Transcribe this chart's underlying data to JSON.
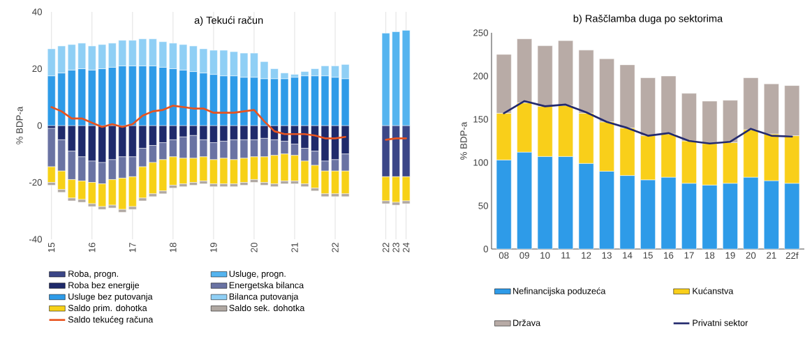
{
  "chart_data": [
    {
      "type": "bar",
      "title": "a) Tekući račun",
      "ylabel": "% BDP-a",
      "stacked": true,
      "grid": "x",
      "legend": "bottom",
      "categories": [
        "15",
        null,
        null,
        null,
        "16",
        null,
        null,
        null,
        "17",
        null,
        null,
        null,
        "18",
        null,
        null,
        null,
        "19",
        null,
        null,
        null,
        "20",
        null,
        null,
        null,
        "21",
        null,
        null,
        null,
        "22",
        null,
        null,
        null,
        null,
        "22",
        "23",
        "24"
      ],
      "ylim": [
        -40,
        40
      ],
      "yticks": [
        -40,
        -20,
        0,
        20,
        40
      ],
      "series": [
        {
          "name": "Roba, progn.",
          "color": "#3b4687",
          "values": [
            null,
            null,
            null,
            null,
            null,
            null,
            null,
            null,
            null,
            null,
            null,
            null,
            null,
            null,
            null,
            null,
            null,
            null,
            null,
            null,
            null,
            null,
            null,
            null,
            null,
            null,
            null,
            null,
            null,
            null,
            null,
            null,
            null,
            -18,
            -18,
            -18
          ]
        },
        {
          "name": "Usluge, progn.",
          "color": "#55b4ef",
          "values": [
            null,
            null,
            null,
            null,
            null,
            null,
            null,
            null,
            null,
            null,
            null,
            null,
            null,
            null,
            null,
            null,
            null,
            null,
            null,
            null,
            null,
            null,
            null,
            null,
            null,
            null,
            null,
            null,
            null,
            null,
            null,
            null,
            null,
            32.5,
            33,
            33.5
          ]
        },
        {
          "name": "Roba bez energije",
          "color": "#1f2a6b",
          "values": [
            -1,
            -5,
            -9,
            -11,
            -12.5,
            -13,
            -12,
            -11,
            -11,
            -8,
            -7,
            -6,
            -5,
            -4,
            -3.5,
            -5,
            -6,
            -5.5,
            -5,
            -5,
            -5,
            -4.5,
            -5,
            -5.5,
            -6.5,
            -8,
            -9,
            -12.5,
            -12,
            -10,
            null,
            null,
            null,
            null,
            null,
            null
          ]
        },
        {
          "name": "Energetska bilanca",
          "color": "#6a73a3",
          "values": [
            -13.5,
            -11,
            -10,
            -8.5,
            -7.5,
            -7.5,
            -7,
            -7.5,
            -7,
            -6.5,
            -6,
            -6,
            -6,
            -7.5,
            -8,
            -6,
            -6,
            -6,
            -7,
            -6.5,
            -6,
            -6.5,
            -5.5,
            -4.5,
            -4,
            -4.5,
            -5,
            -3.5,
            -4,
            -6,
            null,
            null,
            null,
            null,
            null,
            null
          ]
        },
        {
          "name": "Usluge bez putovanja",
          "color": "#2e9be8",
          "values": [
            17.5,
            18.5,
            19.5,
            20,
            19.5,
            20,
            20.5,
            21,
            21,
            21,
            21,
            20.5,
            20,
            19.5,
            19,
            18.5,
            18,
            17.5,
            17.5,
            17,
            17,
            16.5,
            16.5,
            16.5,
            17,
            17.5,
            17.5,
            17.5,
            17,
            16.5,
            null,
            null,
            null,
            null,
            null,
            null
          ]
        },
        {
          "name": "Bilanca putovanja",
          "color": "#8fcff5",
          "values": [
            9.5,
            9.5,
            9,
            9,
            8.5,
            8.5,
            8.5,
            9,
            9,
            9.5,
            9.5,
            9,
            9,
            9,
            9,
            8.5,
            8.5,
            9,
            8.5,
            8.5,
            8.5,
            6,
            3.5,
            2,
            1,
            1.5,
            2.5,
            3.5,
            4,
            5,
            null,
            null,
            null,
            null,
            null,
            null
          ]
        },
        {
          "name": "Saldo prim. dohotka",
          "color": "#f7d117",
          "values": [
            -5.5,
            -6.5,
            -6.5,
            -6.5,
            -7.5,
            -8,
            -9,
            -11,
            -10.5,
            -11,
            -11,
            -11,
            -10,
            -9,
            -8.5,
            -8.5,
            -8.5,
            -9,
            -8.5,
            -8.5,
            -8,
            -9,
            -10,
            -9.5,
            -9,
            -8,
            -8,
            -8,
            -8,
            -8,
            null,
            null,
            null,
            -8.5,
            -9,
            -8.5
          ]
        },
        {
          "name": "Saldo sek. dohotka",
          "color": "#b0a8a2",
          "values": [
            -1,
            -1,
            -1,
            -1,
            -1,
            -1,
            -1,
            -1,
            -1,
            -1,
            -1,
            -1,
            -1,
            -1,
            -1,
            -1,
            -1,
            -1,
            -1,
            -1,
            -1,
            -1,
            -1,
            -1,
            -1,
            -1,
            -1,
            -1,
            -1,
            -1,
            null,
            null,
            null,
            -1,
            -1,
            -1
          ]
        },
        {
          "name": "Saldo tekućeg računa",
          "type": "line",
          "color": "#e8531f",
          "values": [
            6.5,
            5,
            2.5,
            2.5,
            1,
            -0.5,
            0.5,
            -0.5,
            0.5,
            3.5,
            5,
            5.5,
            7,
            6.5,
            6,
            6,
            4.5,
            4.5,
            4.5,
            5,
            5.5,
            1.5,
            -2,
            -3,
            -3,
            -3,
            -3.5,
            -4.5,
            -4.5,
            -4,
            null,
            null,
            null,
            -5,
            -4.5,
            -4.5
          ]
        }
      ]
    },
    {
      "type": "bar",
      "title": "b) Raščlamba duga po sektorima",
      "ylabel": "% BDP-a",
      "stacked": true,
      "legend": "bottom",
      "categories": [
        "08",
        "09",
        "10",
        "11",
        "12",
        "13",
        "14",
        "15",
        "16",
        "17",
        "18",
        "19",
        "20",
        "21",
        "22f"
      ],
      "ylim": [
        0,
        250
      ],
      "yticks": [
        0,
        50,
        100,
        150,
        200,
        250
      ],
      "series": [
        {
          "name": "Nefinancijska poduzeća",
          "color": "#2e9be8",
          "values": [
            103,
            112,
            107,
            107,
            99,
            90,
            85,
            80,
            83,
            76,
            74,
            76,
            83,
            79,
            76
          ]
        },
        {
          "name": "Kućanstva",
          "color": "#f9cf1a",
          "values": [
            54,
            57,
            58,
            59,
            58,
            57,
            55,
            51,
            50,
            49,
            48,
            47,
            55,
            54,
            55
          ]
        },
        {
          "name": "Država",
          "color": "#b8aba6",
          "values": [
            68,
            74,
            70,
            75,
            73,
            73,
            73,
            67,
            67,
            55,
            49,
            49,
            60,
            58,
            58
          ]
        },
        {
          "name": "Privatni sektor",
          "type": "line",
          "color": "#232a6e",
          "values": [
            157,
            171,
            165,
            167,
            158,
            147,
            140,
            131,
            134,
            125,
            122,
            124,
            139,
            131,
            130
          ]
        }
      ]
    }
  ]
}
